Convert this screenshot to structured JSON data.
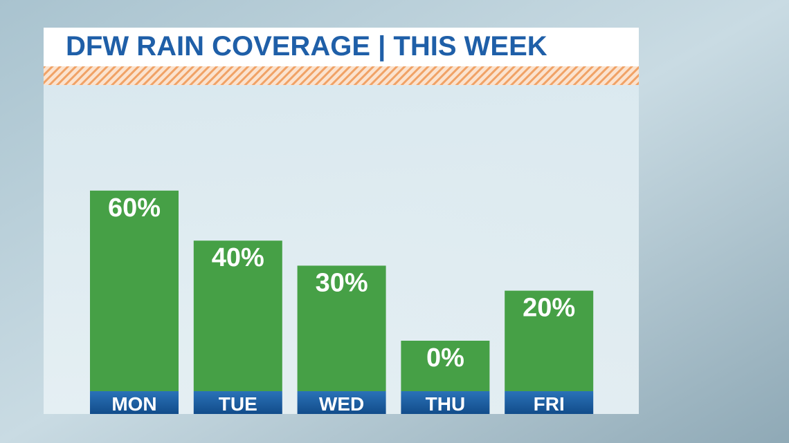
{
  "chart_data": {
    "type": "bar",
    "title": "DFW RAIN COVERAGE | THIS WEEK",
    "categories": [
      "MON",
      "TUE",
      "WED",
      "THU",
      "FRI"
    ],
    "values": [
      60,
      40,
      30,
      0,
      20
    ],
    "value_labels": [
      "60%",
      "40%",
      "30%",
      "0%",
      "20%"
    ],
    "color": "#46a046"
  }
}
